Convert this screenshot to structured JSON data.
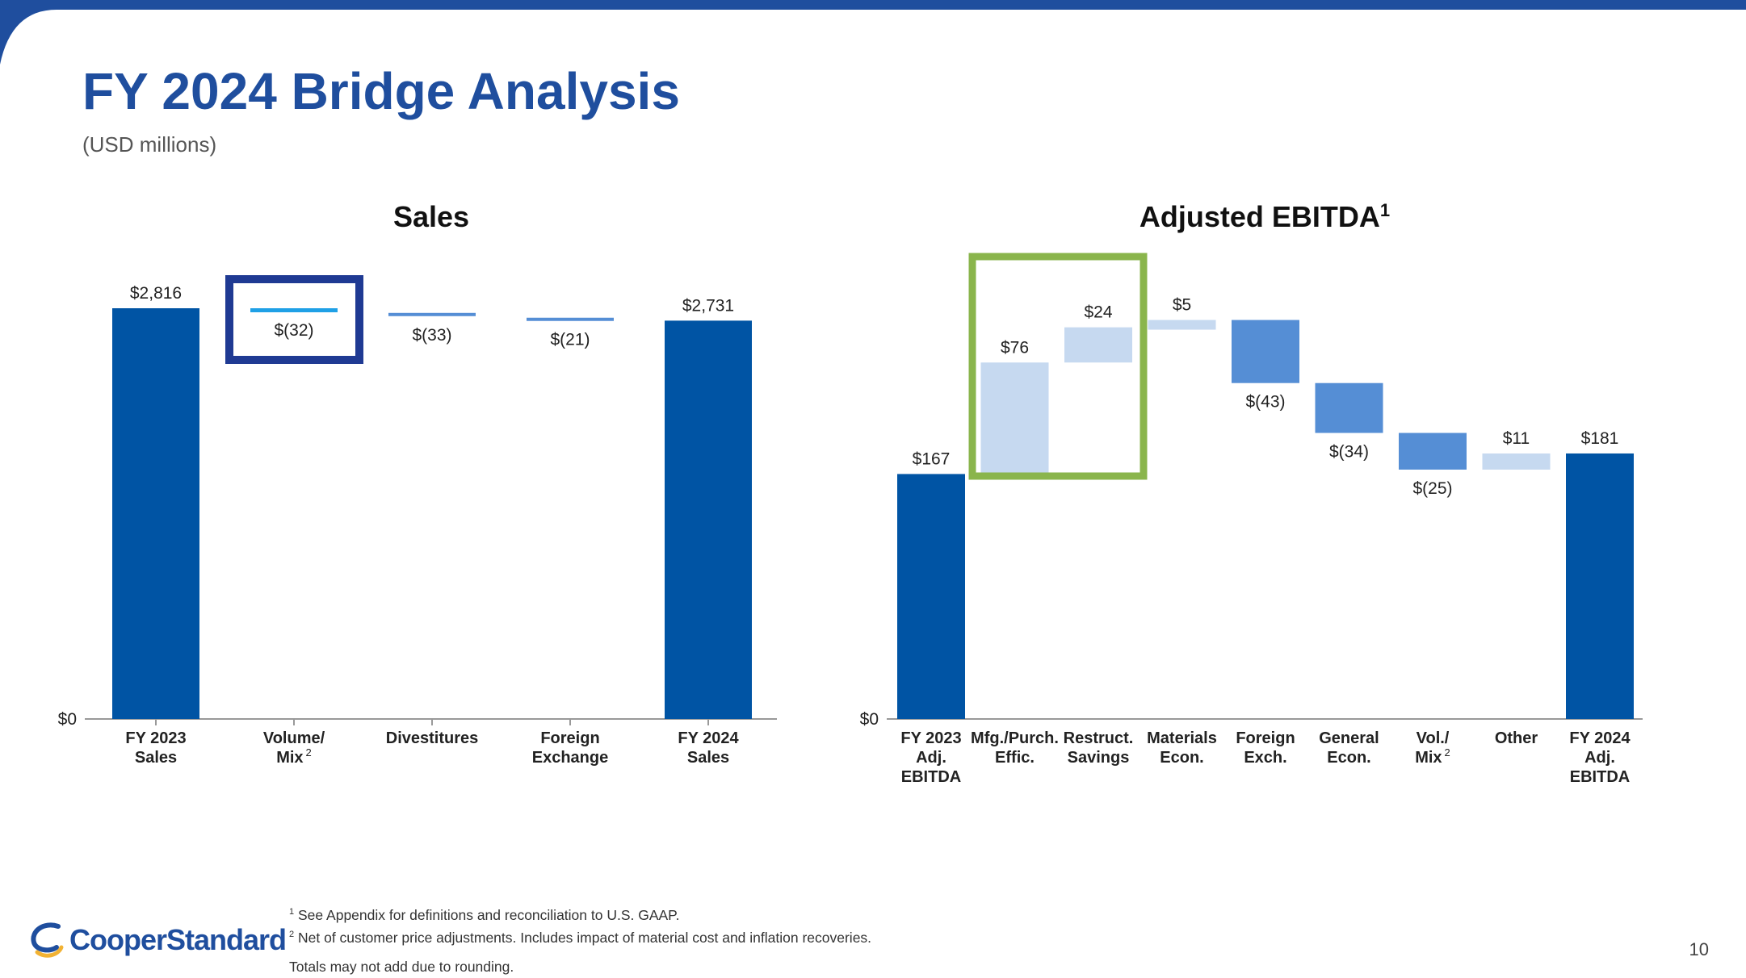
{
  "slide": {
    "title": "FY 2024 Bridge Analysis",
    "subtitle": "(USD millions)",
    "page_number": "10",
    "logo_text": "CooperStandard",
    "footnotes": {
      "note1": "See Appendix for definitions and reconciliation to U.S. GAAP.",
      "note2": "Net of customer price adjustments. Includes impact of material cost and inflation recoveries.",
      "note3": "Totals may not add due to rounding."
    }
  },
  "colors": {
    "title": "#1f4e9e",
    "total_bar": "#0054a4",
    "positive_bar": "#c6d9f0",
    "negative_bar": "#558ed5",
    "sales_volume_line": "#1fa0e6",
    "highlight_navy": "#1f3a93",
    "highlight_green": "#8ab54c",
    "axis": "#999999"
  },
  "chart_data": [
    {
      "type": "bar",
      "subtype": "waterfall",
      "title": "Sales",
      "y_min_label": "$0",
      "ylim": [
        0,
        2816
      ],
      "categories": [
        {
          "lines": [
            "FY 2023",
            "Sales"
          ],
          "sup": ""
        },
        {
          "lines": [
            "Volume/",
            "Mix"
          ],
          "sup": "2"
        },
        {
          "lines": [
            "Divestitures"
          ],
          "sup": ""
        },
        {
          "lines": [
            "Foreign",
            "Exchange"
          ],
          "sup": ""
        },
        {
          "lines": [
            "FY 2024",
            "Sales"
          ],
          "sup": ""
        }
      ],
      "values": [
        2816,
        -32,
        -33,
        -21,
        2731
      ],
      "kinds": [
        "total",
        "delta",
        "delta",
        "delta",
        "total"
      ],
      "data_labels": [
        "$2,816",
        "$(32)",
        "$(33)",
        "$(21)",
        "$2,731"
      ],
      "highlight_category": "Volume/Mix"
    },
    {
      "type": "bar",
      "subtype": "waterfall",
      "title": "Adjusted EBITDA",
      "title_sup": "1",
      "y_min_label": "$0",
      "ylim": [
        0,
        280
      ],
      "categories": [
        {
          "lines": [
            "FY 2023",
            "Adj.",
            "EBITDA"
          ],
          "sup": ""
        },
        {
          "lines": [
            "Mfg./Purch.",
            "Effic."
          ],
          "sup": ""
        },
        {
          "lines": [
            "Restruct.",
            "Savings"
          ],
          "sup": ""
        },
        {
          "lines": [
            "Materials",
            "Econ."
          ],
          "sup": ""
        },
        {
          "lines": [
            "Foreign",
            "Exch."
          ],
          "sup": ""
        },
        {
          "lines": [
            "General",
            "Econ."
          ],
          "sup": ""
        },
        {
          "lines": [
            "Vol./",
            "Mix"
          ],
          "sup": "2"
        },
        {
          "lines": [
            "Other"
          ],
          "sup": ""
        },
        {
          "lines": [
            "FY 2024",
            "Adj.",
            "EBITDA"
          ],
          "sup": ""
        }
      ],
      "values": [
        167,
        76,
        24,
        5,
        -43,
        -34,
        -25,
        11,
        181
      ],
      "kinds": [
        "total",
        "delta",
        "delta",
        "delta",
        "delta",
        "delta",
        "delta",
        "delta",
        "total"
      ],
      "data_labels": [
        "$167",
        "$76",
        "$24",
        "$5",
        "$(43)",
        "$(34)",
        "$(25)",
        "$11",
        "$181"
      ],
      "highlight_categories": [
        "Mfg./Purch. Effic.",
        "Restruct. Savings"
      ]
    }
  ]
}
